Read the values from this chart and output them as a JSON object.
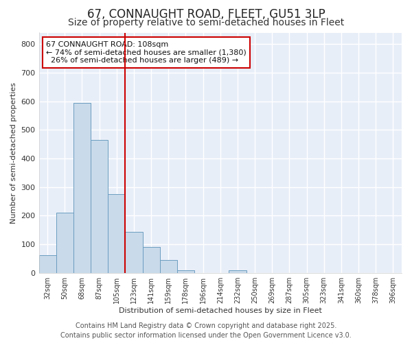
{
  "title1": "67, CONNAUGHT ROAD, FLEET, GU51 3LP",
  "title2": "Size of property relative to semi-detached houses in Fleet",
  "xlabel": "Distribution of semi-detached houses by size in Fleet",
  "ylabel": "Number of semi-detached properties",
  "categories": [
    "32sqm",
    "50sqm",
    "68sqm",
    "87sqm",
    "105sqm",
    "123sqm",
    "141sqm",
    "159sqm",
    "178sqm",
    "196sqm",
    "214sqm",
    "232sqm",
    "250sqm",
    "269sqm",
    "287sqm",
    "305sqm",
    "323sqm",
    "341sqm",
    "360sqm",
    "378sqm",
    "396sqm"
  ],
  "values": [
    62,
    210,
    595,
    465,
    275,
    143,
    90,
    46,
    10,
    0,
    0,
    8,
    0,
    0,
    0,
    0,
    0,
    0,
    0,
    0,
    0
  ],
  "bar_color": "#c9daea",
  "bar_edge_color": "#6b9dc0",
  "vline_x": 4.5,
  "vline_color": "#cc0000",
  "annotation_line1": "67 CONNAUGHT ROAD: 108sqm",
  "annotation_line2": "← 74% of semi-detached houses are smaller (1,380)",
  "annotation_line3": "  26% of semi-detached houses are larger (489) →",
  "ann_box_color": "#cc0000",
  "ylim": [
    0,
    840
  ],
  "yticks": [
    0,
    100,
    200,
    300,
    400,
    500,
    600,
    700,
    800
  ],
  "footer_text": "Contains HM Land Registry data © Crown copyright and database right 2025.\nContains public sector information licensed under the Open Government Licence v3.0.",
  "bg_color": "#ffffff",
  "plot_bg_color": "#e8eef8",
  "grid_color": "#ffffff",
  "title1_fontsize": 12,
  "title2_fontsize": 10,
  "ann_fontsize": 8,
  "footer_fontsize": 7,
  "ylabel_fontsize": 8,
  "xlabel_fontsize": 8
}
